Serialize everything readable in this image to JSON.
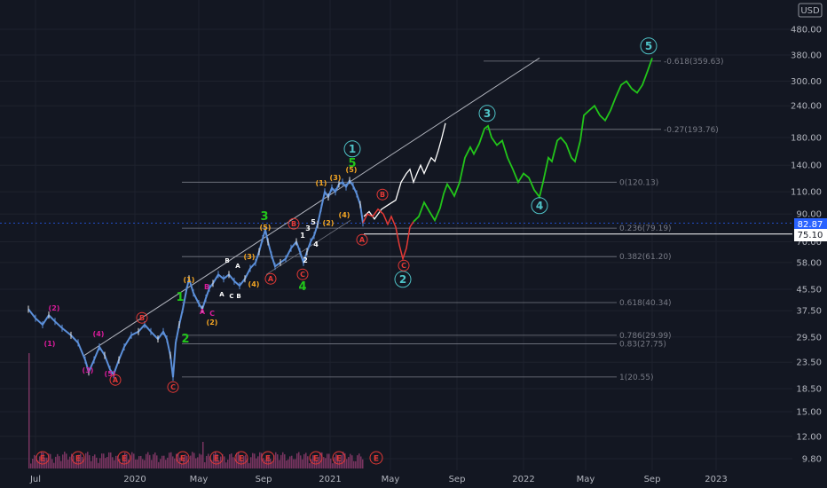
{
  "chart_data": {
    "type": "line",
    "title": "",
    "currency": "USD",
    "y_scale": "log",
    "ylim": [
      9,
      600
    ],
    "y_ticks": [
      "480.00",
      "380.00",
      "300.00",
      "240.00",
      "180.00",
      "140.00",
      "110.00",
      "90.00",
      "70.00",
      "58.00",
      "45.50",
      "37.50",
      "29.50",
      "23.50",
      "18.50",
      "15.00",
      "12.00",
      "9.80"
    ],
    "x_ticks": [
      "Jul",
      "2020",
      "May",
      "Sep",
      "2021",
      "May",
      "Sep",
      "2022",
      "May",
      "Sep",
      "2023"
    ],
    "price_labels": {
      "current": "82.87",
      "line": "75.10"
    },
    "fib_levels": [
      {
        "label": "-0.618(359.63)",
        "value": 359.63
      },
      {
        "label": "-0.27(193.76)",
        "value": 193.76
      },
      {
        "label": "0(120.13)",
        "value": 120.13
      },
      {
        "label": "0.236(79.19)",
        "value": 79.19
      },
      {
        "label": "0.382(61.20)",
        "value": 61.2
      },
      {
        "label": "0.618(40.34)",
        "value": 40.34
      },
      {
        "label": "0.786(29.99)",
        "value": 29.99
      },
      {
        "label": "0.83(27.75)",
        "value": 27.75
      },
      {
        "label": "1(20.55)",
        "value": 20.55
      }
    ],
    "wave_labels_major": [
      "1",
      "2",
      "3",
      "4",
      "5"
    ],
    "wave_labels_minor": [
      "1",
      "2",
      "3",
      "4",
      "5"
    ],
    "wave_labels_sub": [
      "(1)",
      "(2)",
      "(3)",
      "(4)",
      "(5)"
    ],
    "abc_labels": [
      "A",
      "B",
      "C"
    ],
    "earnings_marker": "E",
    "colors": {
      "background": "#131722",
      "projection_green": "#22c51a",
      "projection_white": "#ffffff",
      "projection_red": "#e53935",
      "minor_green": "#22c51a",
      "major_teal": "#4fc3c7",
      "sub_orange": "#f5a623",
      "sub_magenta": "#d81b9a",
      "abc_red": "#e53935",
      "candle_blue": "#5b8fd9",
      "volume": "#8b3a6b"
    }
  }
}
